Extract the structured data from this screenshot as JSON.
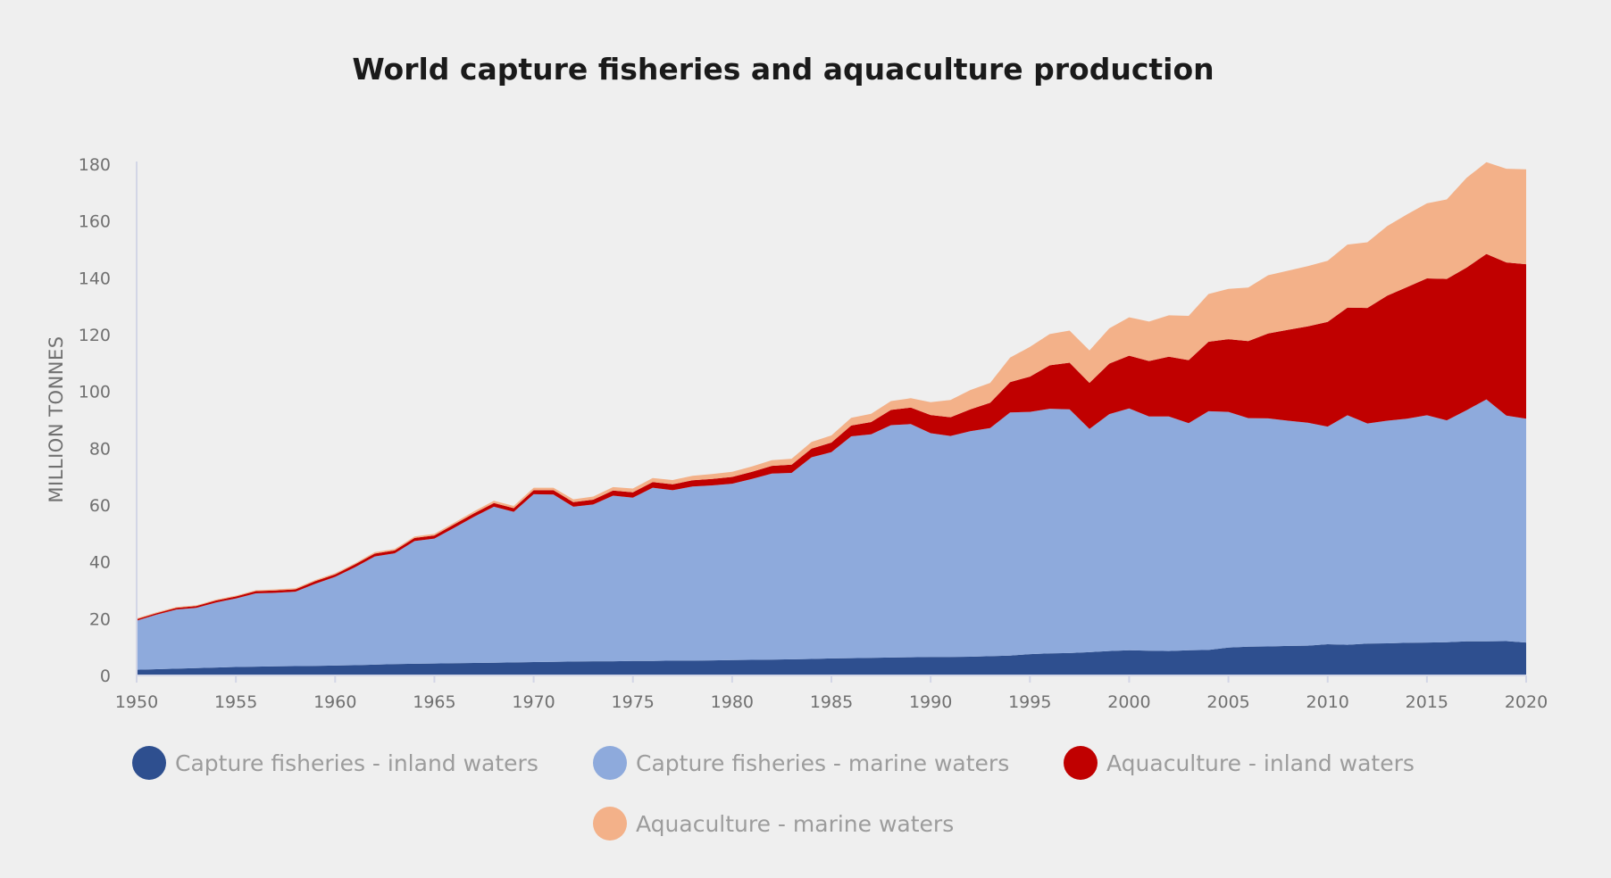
{
  "chart_data": {
    "type": "area",
    "stacked": true,
    "title": "World capture fisheries and aquaculture production",
    "ylabel": "MILLION TONNES",
    "xlabel": "",
    "xlim": [
      1950,
      2020
    ],
    "ylim": [
      0,
      180
    ],
    "x_ticks": [
      "1950",
      "1955",
      "1960",
      "1965",
      "1970",
      "1975",
      "1980",
      "1985",
      "1990",
      "1995",
      "2000",
      "2005",
      "2010",
      "2015",
      "2020"
    ],
    "y_ticks": [
      "0",
      "20",
      "40",
      "60",
      "80",
      "100",
      "120",
      "140",
      "160",
      "180"
    ],
    "grid": false,
    "legend_position": "bottom",
    "x": [
      1950,
      1951,
      1952,
      1953,
      1954,
      1955,
      1956,
      1957,
      1958,
      1959,
      1960,
      1961,
      1962,
      1963,
      1964,
      1965,
      1966,
      1967,
      1968,
      1969,
      1970,
      1971,
      1972,
      1973,
      1974,
      1975,
      1976,
      1977,
      1978,
      1979,
      1980,
      1981,
      1982,
      1983,
      1984,
      1985,
      1986,
      1987,
      1988,
      1989,
      1990,
      1991,
      1992,
      1993,
      1994,
      1995,
      1996,
      1997,
      1998,
      1999,
      2000,
      2001,
      2002,
      2003,
      2004,
      2005,
      2006,
      2007,
      2008,
      2009,
      2010,
      2011,
      2012,
      2013,
      2014,
      2015,
      2016,
      2017,
      2018,
      2019,
      2020
    ],
    "series": [
      {
        "name": "Capture fisheries - inland waters",
        "color": "#2e4f8f",
        "values": [
          2.0,
          2.2,
          2.4,
          2.6,
          2.8,
          3.0,
          3.1,
          3.2,
          3.3,
          3.4,
          3.5,
          3.6,
          3.8,
          4.0,
          4.1,
          4.2,
          4.3,
          4.4,
          4.5,
          4.6,
          4.7,
          4.8,
          4.9,
          5.0,
          5.0,
          5.1,
          5.1,
          5.2,
          5.2,
          5.3,
          5.4,
          5.5,
          5.6,
          5.7,
          5.8,
          6.0,
          6.1,
          6.2,
          6.3,
          6.4,
          6.5,
          6.5,
          6.6,
          6.8,
          7.0,
          7.5,
          7.8,
          7.9,
          8.2,
          8.6,
          8.9,
          8.7,
          8.6,
          8.9,
          9.0,
          9.8,
          10.1,
          10.2,
          10.4,
          10.5,
          11.0,
          10.8,
          11.2,
          11.3,
          11.5,
          11.6,
          11.7,
          12.0,
          12.0,
          12.1,
          11.6
        ]
      },
      {
        "name": "Capture fisheries - marine waters",
        "color": "#8eaadc",
        "values": [
          17.3,
          19.2,
          20.8,
          21.2,
          22.9,
          24.1,
          25.8,
          25.9,
          26.2,
          28.9,
          31.2,
          34.5,
          38.1,
          39.0,
          43.2,
          44.0,
          47.7,
          51.5,
          54.9,
          53.0,
          59.1,
          58.9,
          54.5,
          55.2,
          58.3,
          57.5,
          61.0,
          60.0,
          61.3,
          61.6,
          62.1,
          63.7,
          65.5,
          65.6,
          71.0,
          72.6,
          78.1,
          78.7,
          81.8,
          82.1,
          78.8,
          77.8,
          79.4,
          80.3,
          85.6,
          85.3,
          86.1,
          85.8,
          78.6,
          83.4,
          85.1,
          82.5,
          82.6,
          79.9,
          84.0,
          83.0,
          80.5,
          80.3,
          79.3,
          78.5,
          76.6,
          80.8,
          77.5,
          78.4,
          78.9,
          80.0,
          78.1,
          81.4,
          85.2,
          79.4,
          78.8
        ]
      },
      {
        "name": "Aquaculture - inland waters",
        "color": "#c00000",
        "values": [
          0.5,
          0.5,
          0.6,
          0.6,
          0.7,
          0.7,
          0.8,
          0.8,
          0.8,
          0.9,
          0.9,
          1.0,
          1.0,
          1.0,
          1.1,
          1.1,
          1.2,
          1.2,
          1.3,
          1.3,
          1.4,
          1.5,
          1.6,
          1.7,
          1.8,
          1.9,
          2.0,
          2.1,
          2.2,
          2.3,
          2.4,
          2.5,
          2.7,
          2.9,
          3.1,
          3.4,
          3.8,
          4.3,
          5.4,
          5.8,
          6.4,
          6.6,
          7.7,
          8.9,
          10.7,
          12.4,
          15.3,
          16.4,
          16.2,
          17.8,
          18.6,
          19.5,
          21.0,
          22.2,
          24.5,
          25.6,
          27.1,
          29.9,
          32.0,
          33.9,
          36.9,
          37.9,
          40.7,
          44.0,
          46.3,
          48.2,
          49.8,
          50.2,
          51.2,
          53.9,
          54.4
        ]
      },
      {
        "name": "Aquaculture - marine waters",
        "color": "#f3b189",
        "values": [
          0.3,
          0.3,
          0.3,
          0.3,
          0.3,
          0.3,
          0.3,
          0.4,
          0.4,
          0.4,
          0.4,
          0.4,
          0.5,
          0.5,
          0.5,
          0.6,
          0.6,
          0.7,
          0.8,
          0.8,
          0.9,
          0.9,
          1.0,
          1.1,
          1.2,
          1.3,
          1.4,
          1.5,
          1.6,
          1.7,
          1.8,
          1.9,
          2.0,
          2.1,
          2.3,
          2.5,
          2.7,
          2.9,
          3.1,
          3.3,
          4.5,
          6.1,
          6.8,
          7.0,
          8.6,
          10.5,
          11.0,
          11.3,
          11.4,
          12.4,
          13.5,
          13.9,
          14.6,
          15.6,
          16.8,
          17.7,
          18.9,
          20.5,
          20.8,
          21.2,
          21.5,
          22.2,
          23.1,
          24.5,
          25.6,
          26.4,
          28.0,
          31.6,
          32.3,
          33.0,
          33.4
        ]
      }
    ]
  }
}
